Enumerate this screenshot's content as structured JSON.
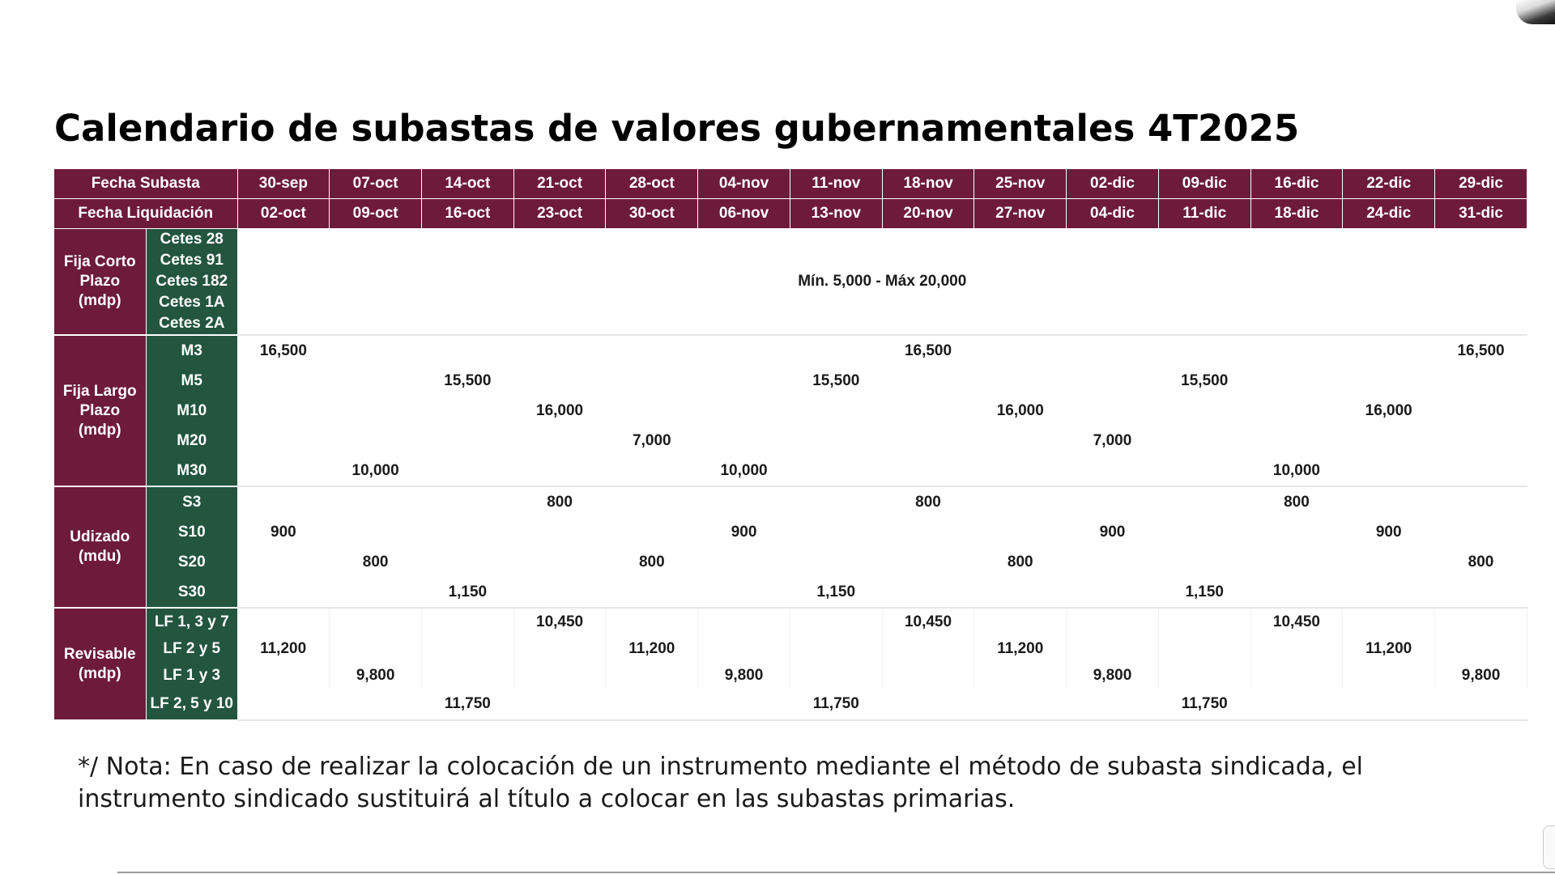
{
  "title": "Calendario de subastas de valores gubernamentales 4T2025",
  "header": {
    "auction_label": "Fecha Subasta",
    "settlement_label": "Fecha Liquidación",
    "auction_dates": [
      "30-sep",
      "07-oct",
      "14-oct",
      "21-oct",
      "28-oct",
      "04-nov",
      "11-nov",
      "18-nov",
      "25-nov",
      "02-dic",
      "09-dic",
      "16-dic",
      "22-dic",
      "29-dic"
    ],
    "settlement_dates": [
      "02-oct",
      "09-oct",
      "16-oct",
      "23-oct",
      "30-oct",
      "06-nov",
      "13-nov",
      "20-nov",
      "27-nov",
      "04-dic",
      "11-dic",
      "18-dic",
      "24-dic",
      "31-dic"
    ]
  },
  "sections": {
    "short_term": {
      "label_lines": [
        "Fija Corto",
        "Plazo",
        "(mdp)"
      ],
      "instruments": [
        "Cetes 28",
        "Cetes 91",
        "Cetes 182",
        "Cetes 1A",
        "Cetes 2A"
      ],
      "range": "Mín. 5,000 - Máx 20,000"
    },
    "long_term": {
      "label_lines": [
        "Fija Largo",
        "Plazo",
        "(mdp)"
      ],
      "rows": [
        {
          "instrument": "M3",
          "values": [
            "16,500",
            "",
            "",
            "",
            "",
            "",
            "",
            "16,500",
            "",
            "",
            "",
            "",
            "",
            "16,500"
          ]
        },
        {
          "instrument": "M5",
          "values": [
            "",
            "",
            "15,500",
            "",
            "",
            "",
            "15,500",
            "",
            "",
            "",
            "15,500",
            "",
            "",
            ""
          ]
        },
        {
          "instrument": "M10",
          "values": [
            "",
            "",
            "",
            "16,000",
            "",
            "",
            "",
            "",
            "16,000",
            "",
            "",
            "",
            "16,000",
            ""
          ]
        },
        {
          "instrument": "M20",
          "values": [
            "",
            "",
            "",
            "",
            "7,000",
            "",
            "",
            "",
            "",
            "7,000",
            "",
            "",
            "",
            ""
          ]
        },
        {
          "instrument": "M30",
          "values": [
            "",
            "10,000",
            "",
            "",
            "",
            "10,000",
            "",
            "",
            "",
            "",
            "",
            "10,000",
            "",
            ""
          ]
        }
      ]
    },
    "udizado": {
      "label_lines": [
        "Udizado",
        "(mdu)"
      ],
      "rows": [
        {
          "instrument": "S3",
          "values": [
            "",
            "",
            "",
            "800",
            "",
            "",
            "",
            "800",
            "",
            "",
            "",
            "800",
            "",
            ""
          ]
        },
        {
          "instrument": "S10",
          "values": [
            "900",
            "",
            "",
            "",
            "",
            "900",
            "",
            "",
            "",
            "900",
            "",
            "",
            "900",
            ""
          ]
        },
        {
          "instrument": "S20",
          "values": [
            "",
            "800",
            "",
            "",
            "800",
            "",
            "",
            "",
            "800",
            "",
            "",
            "",
            "",
            "800"
          ]
        },
        {
          "instrument": "S30",
          "values": [
            "",
            "",
            "1,150",
            "",
            "",
            "",
            "1,150",
            "",
            "",
            "",
            "1,150",
            "",
            "",
            ""
          ]
        }
      ]
    },
    "revisable": {
      "label_lines": [
        "Revisable",
        "(mdp)"
      ],
      "rows": [
        {
          "instrument": "LF 1, 3 y 7",
          "values": [
            "",
            "",
            "",
            "10,450",
            "",
            "",
            "",
            "10,450",
            "",
            "",
            "",
            "10,450",
            "",
            ""
          ]
        },
        {
          "instrument": "LF 2 y 5",
          "values": [
            "11,200",
            "",
            "",
            "",
            "11,200",
            "",
            "",
            "",
            "11,200",
            "",
            "",
            "",
            "11,200",
            ""
          ]
        },
        {
          "instrument": "LF 1 y 3",
          "values": [
            "",
            "9,800",
            "",
            "",
            "",
            "9,800",
            "",
            "",
            "",
            "9,800",
            "",
            "",
            "",
            "9,800"
          ]
        },
        {
          "instrument": "LF 2, 5 y 10",
          "values": [
            "",
            "",
            "11,750",
            "",
            "",
            "",
            "11,750",
            "",
            "",
            "",
            "11,750",
            "",
            "",
            ""
          ]
        }
      ]
    }
  },
  "note_lines": [
    "*/ Nota: En caso de realizar la colocación de un instrumento mediante el método de subasta sindicada, el",
    "instrumento sindicado sustituirá al título a colocar en las subastas primarias."
  ],
  "colors": {
    "header_bg": "#6d1a3b",
    "instrument_bg": "#23553f",
    "text": "#1a1a1a"
  }
}
